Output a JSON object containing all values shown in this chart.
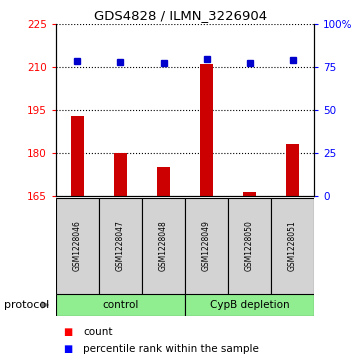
{
  "title": "GDS4828 / ILMN_3226904",
  "samples": [
    "GSM1228046",
    "GSM1228047",
    "GSM1228048",
    "GSM1228049",
    "GSM1228050",
    "GSM1228051"
  ],
  "counts": [
    193.0,
    180.0,
    175.0,
    211.0,
    166.3,
    183.0
  ],
  "percentiles": [
    78.5,
    77.5,
    77.0,
    79.5,
    77.0,
    79.0
  ],
  "ylim_left": [
    165,
    225
  ],
  "ylim_right": [
    0,
    100
  ],
  "yticks_left": [
    165,
    180,
    195,
    210,
    225
  ],
  "yticks_right": [
    0,
    25,
    50,
    75,
    100
  ],
  "yticklabels_right": [
    "0",
    "25",
    "50",
    "75",
    "100%"
  ],
  "bar_color": "#cc0000",
  "dot_color": "#0000cc",
  "bar_width": 0.3,
  "legend_count_label": "count",
  "legend_pct_label": "percentile rank within the sample",
  "gridline_color": "#000000",
  "sample_box_color": "#d3d3d3",
  "group_color": "#90ee90",
  "control_label": "control",
  "cypb_label": "CypB depletion",
  "protocol_label": "protocol"
}
